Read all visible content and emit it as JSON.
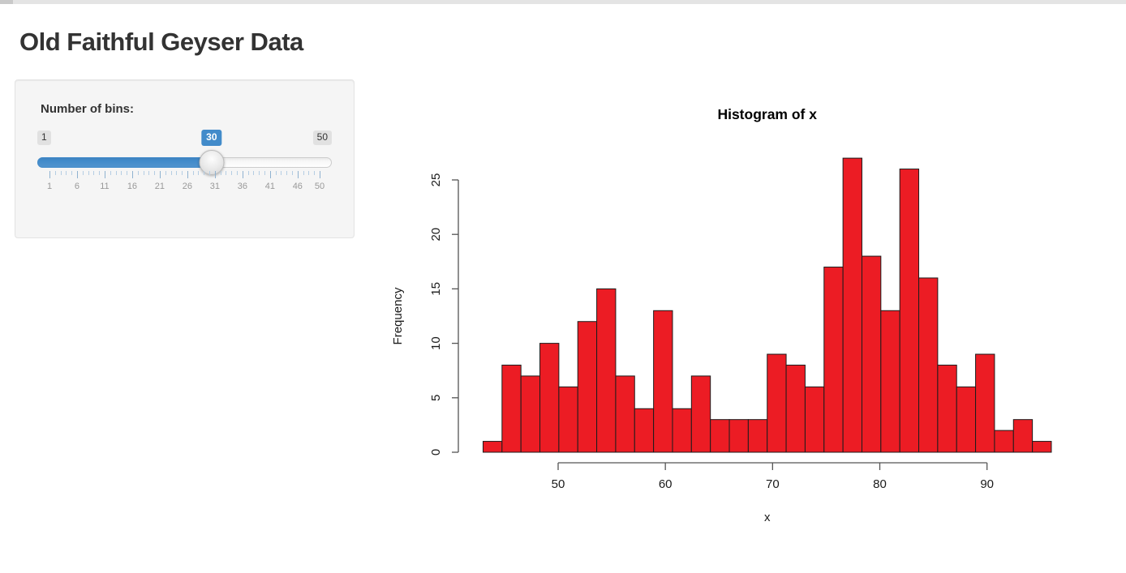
{
  "page": {
    "title": "Old Faithful Geyser Data"
  },
  "sidebar": {
    "bins_label": "Number of bins:",
    "slider": {
      "min": 1,
      "max": 50,
      "value": 30,
      "min_label": "1",
      "max_label": "50",
      "value_label": "30",
      "grid_labels": [
        "1",
        "6",
        "11",
        "16",
        "21",
        "26",
        "31",
        "36",
        "41",
        "46",
        "50"
      ],
      "accent_color": "#428bca"
    }
  },
  "chart_data": {
    "type": "bar",
    "subtype": "histogram",
    "title": "Histogram of x",
    "xlabel": "x",
    "ylabel": "Frequency",
    "bin_start": 43,
    "bin_end": 96,
    "num_bins": 30,
    "counts": [
      1,
      8,
      7,
      10,
      6,
      12,
      15,
      7,
      4,
      13,
      4,
      7,
      3,
      3,
      3,
      9,
      8,
      6,
      17,
      27,
      18,
      13,
      26,
      16,
      8,
      6,
      9,
      2,
      3,
      1
    ],
    "x_ticks": [
      50,
      60,
      70,
      80,
      90
    ],
    "y_ticks": [
      0,
      5,
      10,
      15,
      20,
      25
    ],
    "xlim": [
      43,
      96
    ],
    "ylim": [
      0,
      27
    ],
    "grid": "off",
    "bar_color": "#ec1c24",
    "bar_border_color": "#1c1c1c",
    "axis_color": "#555555",
    "text_color": "#1a1a1a"
  }
}
